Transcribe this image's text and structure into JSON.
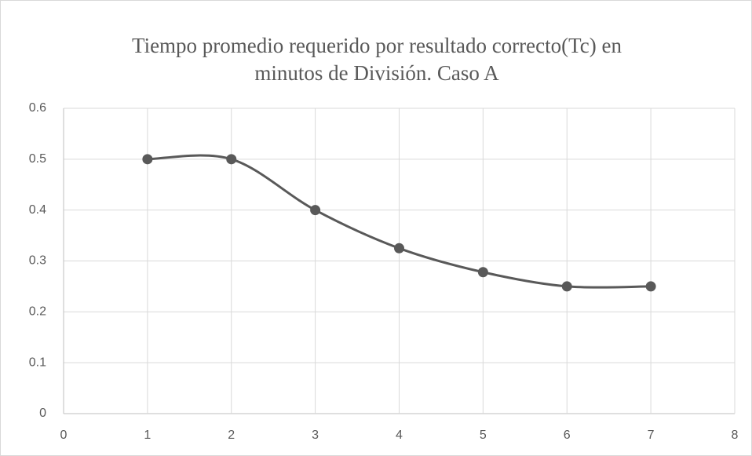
{
  "chart_data": {
    "type": "scatter",
    "title": "Tiempo promedio requerido por resultado correcto(Tc) en minutos de División. Caso A",
    "x": [
      1,
      2,
      3,
      4,
      5,
      6,
      7
    ],
    "series": [
      {
        "color": "#595959",
        "values": [
          0.5,
          0.5,
          0.4,
          0.325,
          0.278,
          0.25,
          0.25
        ]
      }
    ],
    "xlim": [
      0,
      8
    ],
    "xticks": [
      0,
      1,
      2,
      3,
      4,
      5,
      6,
      7,
      8
    ],
    "ylim": [
      0,
      0.6
    ],
    "yticks": [
      0,
      0.1,
      0.2,
      0.3,
      0.4,
      0.5,
      0.6
    ],
    "grid": true,
    "smooth": true
  }
}
